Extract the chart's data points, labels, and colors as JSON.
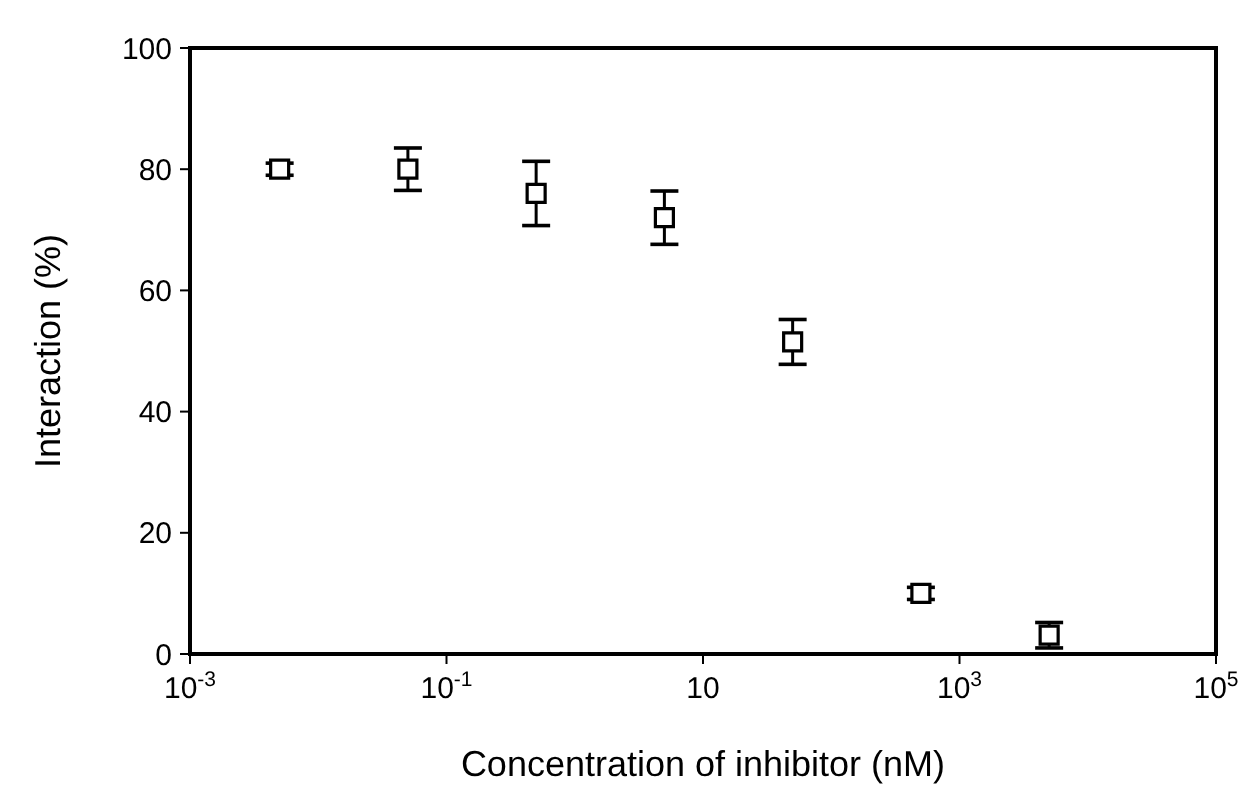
{
  "chart_data": {
    "type": "scatter",
    "xlabel": "Concentration of inhibitor (nM)",
    "ylabel": "Interaction (%)",
    "x": [
      0.005,
      0.05,
      0.5,
      5,
      50,
      500,
      5000
    ],
    "series": [
      {
        "color": "#000000",
        "values": [
          80,
          80,
          76,
          72,
          51.5,
          10,
          3.1
        ],
        "errors": [
          1,
          3.5,
          5.3,
          4.4,
          3.7,
          1,
          2.1
        ]
      }
    ],
    "log": "x",
    "marker": "square",
    "grid": false,
    "xlim": [
      0.001,
      100000
    ],
    "xticks": [
      {
        "value": 0.001,
        "label": "10$^{-3}$"
      },
      {
        "value": 0.1,
        "label": "10$^{-1}$"
      },
      10,
      {
        "value": 1000,
        "label": "10$^{3}$"
      },
      {
        "value": 100000,
        "label": "10$^{5}$"
      }
    ],
    "ylim": [
      0,
      100
    ],
    "yticks": [
      0,
      20,
      40,
      60,
      80,
      100
    ]
  }
}
